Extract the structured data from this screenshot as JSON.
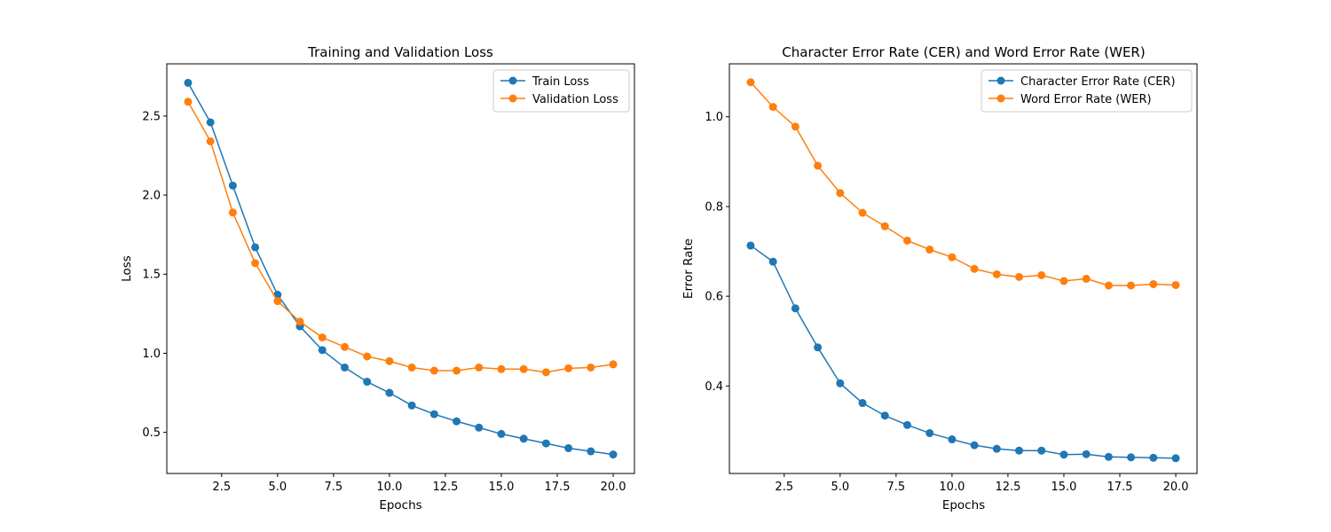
{
  "chart_data": [
    {
      "type": "line",
      "title": "Training and Validation Loss",
      "xlabel": "Epochs",
      "ylabel": "Loss",
      "xlim": [
        0.05,
        20.95
      ],
      "ylim": [
        0.24,
        2.83
      ],
      "xticks": [
        2.5,
        5.0,
        7.5,
        10.0,
        12.5,
        15.0,
        17.5,
        20.0
      ],
      "xtick_labels": [
        "2.5",
        "5.0",
        "7.5",
        "10.0",
        "12.5",
        "15.0",
        "17.5",
        "20.0"
      ],
      "yticks": [
        0.5,
        1.0,
        1.5,
        2.0,
        2.5
      ],
      "ytick_labels": [
        "0.5",
        "1.0",
        "1.5",
        "2.0",
        "2.5"
      ],
      "grid": false,
      "legend_position": "upper right",
      "x": [
        1,
        2,
        3,
        4,
        5,
        6,
        7,
        8,
        9,
        10,
        11,
        12,
        13,
        14,
        15,
        16,
        17,
        18,
        19,
        20
      ],
      "series": [
        {
          "name": "Train Loss",
          "color": "#1f77b4",
          "marker": "circle",
          "values": [
            2.71,
            2.46,
            2.06,
            1.67,
            1.37,
            1.17,
            1.02,
            0.91,
            0.82,
            0.75,
            0.67,
            0.615,
            0.57,
            0.53,
            0.49,
            0.46,
            0.43,
            0.4,
            0.38,
            0.36
          ]
        },
        {
          "name": "Validation Loss",
          "color": "#ff7f0e",
          "marker": "circle",
          "values": [
            2.59,
            2.34,
            1.89,
            1.57,
            1.33,
            1.2,
            1.1,
            1.04,
            0.98,
            0.95,
            0.91,
            0.89,
            0.89,
            0.91,
            0.9,
            0.9,
            0.88,
            0.905,
            0.91,
            0.93
          ]
        }
      ]
    },
    {
      "type": "line",
      "title": "Character Error Rate (CER) and Word Error Rate (WER)",
      "xlabel": "Epochs",
      "ylabel": "Error Rate",
      "xlim": [
        0.05,
        20.95
      ],
      "ylim": [
        0.205,
        1.118
      ],
      "xticks": [
        2.5,
        5.0,
        7.5,
        10.0,
        12.5,
        15.0,
        17.5,
        20.0
      ],
      "xtick_labels": [
        "2.5",
        "5.0",
        "7.5",
        "10.0",
        "12.5",
        "15.0",
        "17.5",
        "20.0"
      ],
      "yticks": [
        0.4,
        0.6,
        0.8,
        1.0
      ],
      "ytick_labels": [
        "0.4",
        "0.6",
        "0.8",
        "1.0"
      ],
      "grid": false,
      "legend_position": "upper right",
      "x": [
        1,
        2,
        3,
        4,
        5,
        6,
        7,
        8,
        9,
        10,
        11,
        12,
        13,
        14,
        15,
        16,
        17,
        18,
        19,
        20
      ],
      "series": [
        {
          "name": "Character Error Rate (CER)",
          "color": "#1f77b4",
          "marker": "circle",
          "values": [
            0.713,
            0.677,
            0.573,
            0.486,
            0.406,
            0.362,
            0.334,
            0.313,
            0.295,
            0.281,
            0.268,
            0.26,
            0.256,
            0.256,
            0.247,
            0.248,
            0.242,
            0.241,
            0.24,
            0.239
          ]
        },
        {
          "name": "Word Error Rate (WER)",
          "color": "#ff7f0e",
          "marker": "circle",
          "values": [
            1.077,
            1.022,
            0.978,
            0.891,
            0.83,
            0.786,
            0.756,
            0.724,
            0.704,
            0.687,
            0.661,
            0.649,
            0.643,
            0.647,
            0.634,
            0.639,
            0.624,
            0.624,
            0.627,
            0.625
          ]
        }
      ]
    }
  ]
}
